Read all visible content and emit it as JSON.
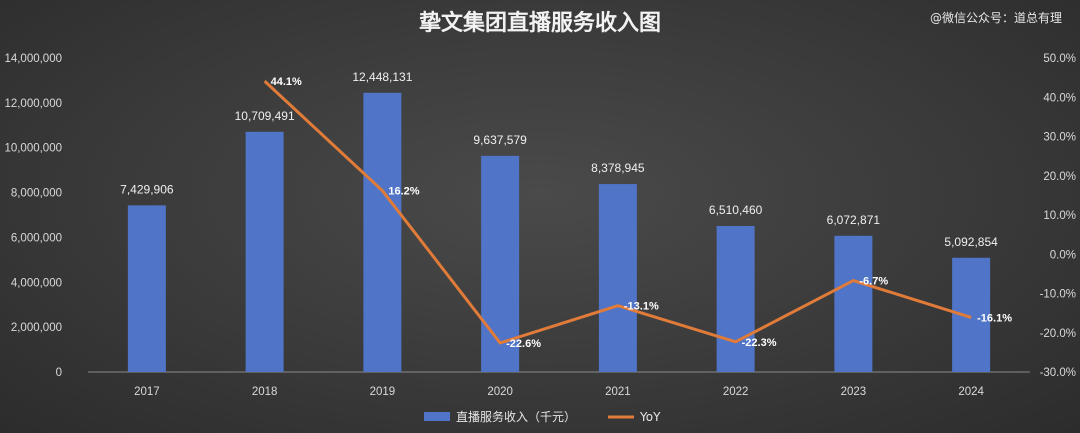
{
  "title": "挚文集团直播服务收入图",
  "watermark": "@微信公众号：道总有理",
  "colors": {
    "bar": "#4f74c8",
    "line": "#e07b39"
  },
  "chart_data": {
    "type": "bar",
    "title": "挚文集团直播服务收入图",
    "categories": [
      "2017",
      "2018",
      "2019",
      "2020",
      "2021",
      "2022",
      "2023",
      "2024"
    ],
    "series": [
      {
        "name": "直播服务收入（千元）",
        "type": "bar",
        "axis": "left",
        "values": [
          7429906,
          10709491,
          12448131,
          9637579,
          8378945,
          6510460,
          6072871,
          5092854
        ],
        "labels": [
          "7,429,906",
          "10,709,491",
          "12,448,131",
          "9,637,579",
          "8,378,945",
          "6,510,460",
          "6,072,871",
          "5,092,854"
        ]
      },
      {
        "name": "YoY",
        "type": "line",
        "axis": "right",
        "x": [
          "2018",
          "2019",
          "2020",
          "2021",
          "2022",
          "2023",
          "2024"
        ],
        "values": [
          44.1,
          16.2,
          -22.6,
          -13.1,
          -22.3,
          -6.7,
          -16.1
        ],
        "labels": [
          "44.1%",
          "16.2%",
          "-22.6%",
          "-13.1%",
          "-22.3%",
          "-6.7%",
          "-16.1%"
        ]
      }
    ],
    "y_left": {
      "ylim": [
        0,
        14000000
      ],
      "ticks": [
        "0",
        "2,000,000",
        "4,000,000",
        "6,000,000",
        "8,000,000",
        "10,000,000",
        "12,000,000",
        "14,000,000"
      ]
    },
    "y_right": {
      "ylim": [
        -30,
        50
      ],
      "ticks": [
        "-30.0%",
        "-20.0%",
        "-10.0%",
        "0.0%",
        "10.0%",
        "20.0%",
        "30.0%",
        "40.0%",
        "50.0%"
      ]
    },
    "grid": false,
    "legend": "bottom-center"
  }
}
